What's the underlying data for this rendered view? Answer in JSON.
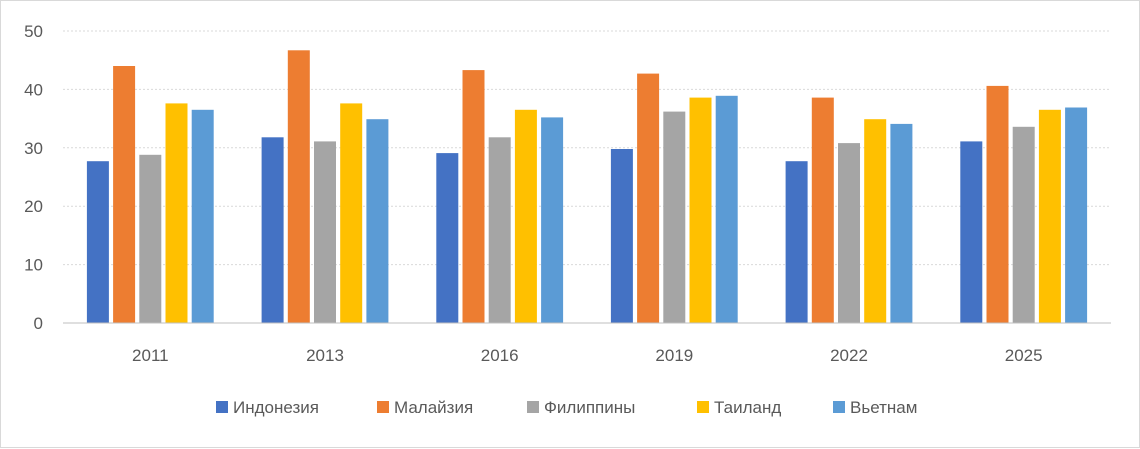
{
  "chart_data": {
    "type": "bar",
    "categories": [
      "2011",
      "2013",
      "2016",
      "2019",
      "2022",
      "2025"
    ],
    "series": [
      {
        "name": "Индонезия",
        "color": "#4472c4",
        "values": [
          27.7,
          31.8,
          29.1,
          29.8,
          27.7,
          31.1
        ]
      },
      {
        "name": "Малайзия",
        "color": "#ed7d31",
        "values": [
          44.0,
          46.7,
          43.3,
          42.7,
          38.6,
          40.6
        ]
      },
      {
        "name": "Филиппины",
        "color": "#a5a5a5",
        "values": [
          28.8,
          31.1,
          31.8,
          36.2,
          30.8,
          33.6
        ]
      },
      {
        "name": "Таиланд",
        "color": "#ffc000",
        "values": [
          37.6,
          37.6,
          36.5,
          38.6,
          34.9,
          36.5
        ]
      },
      {
        "name": "Вьетнам",
        "color": "#5b9bd5",
        "values": [
          36.5,
          34.9,
          35.2,
          38.9,
          34.1,
          36.9
        ]
      }
    ],
    "yticks": [
      "0",
      "10",
      "20",
      "30",
      "40",
      "50"
    ],
    "ylim": [
      0,
      50
    ],
    "grid": true,
    "legend_position": "bottom"
  }
}
